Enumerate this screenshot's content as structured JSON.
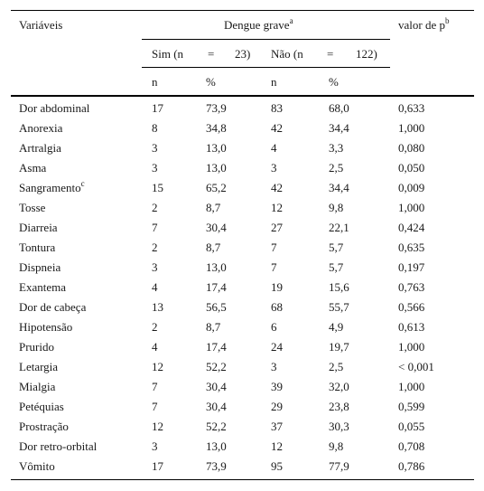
{
  "header": {
    "variables": "Variáveis",
    "group_title": "Dengue grave",
    "group_sup": "a",
    "pvalue": "valor de p",
    "pvalue_sup": "b",
    "yes_label": "Sim (n",
    "yes_eq": "=",
    "yes_n": "23)",
    "no_label": "Não (n",
    "no_eq": "=",
    "no_n": "122)",
    "n1": "n",
    "pct1": "%",
    "n2": "n",
    "pct2": "%"
  },
  "rows": [
    {
      "label": "Dor abdominal",
      "sup": "",
      "n_yes": "17",
      "pct_yes": "73,9",
      "n_no": "83",
      "pct_no": "68,0",
      "p": "0,633"
    },
    {
      "label": "Anorexia",
      "sup": "",
      "n_yes": "8",
      "pct_yes": "34,8",
      "n_no": "42",
      "pct_no": "34,4",
      "p": "1,000"
    },
    {
      "label": "Artralgia",
      "sup": "",
      "n_yes": "3",
      "pct_yes": "13,0",
      "n_no": "4",
      "pct_no": "3,3",
      "p": "0,080"
    },
    {
      "label": "Asma",
      "sup": "",
      "n_yes": "3",
      "pct_yes": "13,0",
      "n_no": "3",
      "pct_no": "2,5",
      "p": "0,050"
    },
    {
      "label": "Sangramento",
      "sup": "c",
      "n_yes": "15",
      "pct_yes": "65,2",
      "n_no": "42",
      "pct_no": "34,4",
      "p": "0,009"
    },
    {
      "label": "Tosse",
      "sup": "",
      "n_yes": "2",
      "pct_yes": "8,7",
      "n_no": "12",
      "pct_no": "9,8",
      "p": "1,000"
    },
    {
      "label": "Diarreia",
      "sup": "",
      "n_yes": "7",
      "pct_yes": "30,4",
      "n_no": "27",
      "pct_no": "22,1",
      "p": "0,424"
    },
    {
      "label": "Tontura",
      "sup": "",
      "n_yes": "2",
      "pct_yes": "8,7",
      "n_no": "7",
      "pct_no": "5,7",
      "p": "0,635"
    },
    {
      "label": "Dispneia",
      "sup": "",
      "n_yes": "3",
      "pct_yes": "13,0",
      "n_no": "7",
      "pct_no": "5,7",
      "p": "0,197"
    },
    {
      "label": "Exantema",
      "sup": "",
      "n_yes": "4",
      "pct_yes": "17,4",
      "n_no": "19",
      "pct_no": "15,6",
      "p": "0,763"
    },
    {
      "label": "Dor de cabeça",
      "sup": "",
      "n_yes": "13",
      "pct_yes": "56,5",
      "n_no": "68",
      "pct_no": "55,7",
      "p": "0,566"
    },
    {
      "label": "Hipotensão",
      "sup": "",
      "n_yes": "2",
      "pct_yes": "8,7",
      "n_no": "6",
      "pct_no": "4,9",
      "p": "0,613"
    },
    {
      "label": "Prurido",
      "sup": "",
      "n_yes": "4",
      "pct_yes": "17,4",
      "n_no": "24",
      "pct_no": "19,7",
      "p": "1,000"
    },
    {
      "label": "Letargia",
      "sup": "",
      "n_yes": "12",
      "pct_yes": "52,2",
      "n_no": "3",
      "pct_no": "2,5",
      "p": "< 0,001"
    },
    {
      "label": "Mialgia",
      "sup": "",
      "n_yes": "7",
      "pct_yes": "30,4",
      "n_no": "39",
      "pct_no": "32,0",
      "p": "1,000"
    },
    {
      "label": "Petéquias",
      "sup": "",
      "n_yes": "7",
      "pct_yes": "30,4",
      "n_no": "29",
      "pct_no": "23,8",
      "p": "0,599"
    },
    {
      "label": "Prostração",
      "sup": "",
      "n_yes": "12",
      "pct_yes": "52,2",
      "n_no": "37",
      "pct_no": "30,3",
      "p": "0,055"
    },
    {
      "label": "Dor retro-orbital",
      "sup": "",
      "n_yes": "3",
      "pct_yes": "13,0",
      "n_no": "12",
      "pct_no": "9,8",
      "p": "0,708"
    },
    {
      "label": "Vômito",
      "sup": "",
      "n_yes": "17",
      "pct_yes": "73,9",
      "n_no": "95",
      "pct_no": "77,9",
      "p": "0,786"
    }
  ]
}
